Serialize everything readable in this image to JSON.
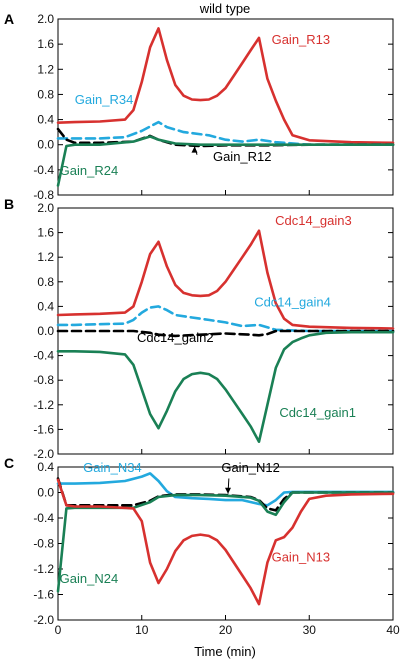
{
  "title": "wild type",
  "colors": {
    "red": "#d7312f",
    "cyan": "#23a9de",
    "green": "#1a8055",
    "black": "#000000"
  },
  "chart_data": [
    {
      "panel": "A",
      "type": "line",
      "title": "wild type",
      "xlabel": "",
      "ylabel": "",
      "xlim": [
        0,
        40
      ],
      "ylim": [
        -0.8,
        2.0
      ],
      "yticks": [
        "-0.8",
        "-0.4",
        "0.0",
        "0.4",
        "0.8",
        "1.2",
        "1.6",
        "2.0"
      ],
      "grid": false,
      "legend": "inline labels",
      "series": [
        {
          "name": "Gain_R13",
          "color": "red",
          "dash": "solid",
          "x": [
            0,
            2,
            5,
            8,
            9,
            10,
            11,
            12,
            13,
            14,
            15,
            16,
            17,
            18,
            19,
            20,
            21,
            22,
            23,
            24,
            25,
            26,
            27,
            28,
            30,
            35,
            40
          ],
          "y": [
            0.35,
            0.36,
            0.37,
            0.4,
            0.55,
            1.0,
            1.55,
            1.85,
            1.35,
            0.95,
            0.78,
            0.72,
            0.71,
            0.72,
            0.78,
            0.9,
            1.1,
            1.3,
            1.5,
            1.7,
            1.05,
            0.7,
            0.4,
            0.15,
            0.07,
            0.04,
            0.03
          ]
        },
        {
          "name": "Gain_R34",
          "color": "cyan",
          "dash": "dashed",
          "x": [
            0,
            1,
            5,
            8,
            10,
            12,
            13,
            15,
            18,
            20,
            22,
            24,
            26,
            30,
            40
          ],
          "y": [
            0.1,
            0.1,
            0.1,
            0.12,
            0.22,
            0.36,
            0.28,
            0.2,
            0.15,
            0.08,
            0.05,
            0.08,
            0.04,
            0.0,
            0.0
          ]
        },
        {
          "name": "Gain_R12",
          "color": "black",
          "dash": "dashed",
          "x": [
            0,
            1,
            2,
            5,
            9,
            11,
            12,
            14,
            17,
            20,
            25,
            30,
            40
          ],
          "y": [
            0.25,
            0.08,
            0.03,
            0.03,
            0.05,
            0.14,
            0.08,
            0.0,
            -0.02,
            -0.01,
            -0.01,
            0.0,
            0.0
          ]
        },
        {
          "name": "Gain_R24",
          "color": "green",
          "dash": "solid",
          "x": [
            0,
            1,
            2,
            5,
            9,
            11,
            12,
            14,
            17,
            20,
            25,
            30,
            40
          ],
          "y": [
            -0.65,
            -0.02,
            0.0,
            0.0,
            0.05,
            0.13,
            0.08,
            0.02,
            0.0,
            0.0,
            0.0,
            0.0,
            0.0
          ]
        }
      ]
    },
    {
      "panel": "B",
      "type": "line",
      "xlabel": "",
      "ylabel": "",
      "xlim": [
        0,
        40
      ],
      "ylim": [
        -2.0,
        2.0
      ],
      "yticks": [
        "-2.0",
        "-1.6",
        "-1.2",
        "-0.8",
        "-0.4",
        "0.0",
        "0.4",
        "0.8",
        "1.2",
        "1.6",
        "2.0"
      ],
      "grid": false,
      "legend": "inline labels",
      "series": [
        {
          "name": "Cdc14_gain3",
          "color": "red",
          "dash": "solid",
          "x": [
            0,
            2,
            5,
            8,
            9,
            10,
            11,
            12,
            13,
            14,
            15,
            16,
            17,
            18,
            19,
            20,
            21,
            22,
            23,
            24,
            25,
            26,
            27,
            28,
            30,
            35,
            40
          ],
          "y": [
            0.26,
            0.27,
            0.28,
            0.3,
            0.4,
            0.8,
            1.25,
            1.45,
            1.05,
            0.75,
            0.62,
            0.58,
            0.57,
            0.58,
            0.65,
            0.8,
            1.0,
            1.2,
            1.4,
            1.63,
            0.95,
            0.45,
            0.2,
            0.1,
            0.07,
            0.05,
            0.04
          ]
        },
        {
          "name": "Cdc14_gain4",
          "color": "cyan",
          "dash": "dashed",
          "x": [
            0,
            2,
            5,
            8,
            9,
            10,
            11,
            12,
            13,
            14,
            16,
            18,
            20,
            22,
            24,
            26,
            30,
            40
          ],
          "y": [
            0.1,
            0.1,
            0.11,
            0.12,
            0.18,
            0.3,
            0.38,
            0.4,
            0.34,
            0.26,
            0.22,
            0.18,
            0.14,
            0.08,
            0.1,
            0.02,
            0.0,
            0.0
          ]
        },
        {
          "name": "Cdc14_gain2",
          "color": "black",
          "dash": "dashed",
          "x": [
            0,
            5,
            9,
            11,
            12,
            14,
            17,
            20,
            23,
            24,
            25,
            26,
            28,
            30,
            40
          ],
          "y": [
            0.0,
            0.0,
            0.0,
            -0.03,
            -0.06,
            -0.08,
            -0.06,
            -0.04,
            -0.06,
            -0.07,
            -0.05,
            0.0,
            0.0,
            0.0,
            0.0
          ]
        },
        {
          "name": "Cdc14_gain1",
          "color": "green",
          "dash": "solid",
          "x": [
            0,
            2,
            5,
            8,
            9,
            10,
            11,
            12,
            13,
            14,
            15,
            16,
            17,
            18,
            19,
            20,
            21,
            22,
            23,
            24,
            25,
            26,
            27,
            28,
            29,
            30,
            32,
            35,
            40
          ],
          "y": [
            -0.33,
            -0.33,
            -0.34,
            -0.38,
            -0.55,
            -0.95,
            -1.35,
            -1.58,
            -1.3,
            -0.98,
            -0.78,
            -0.7,
            -0.68,
            -0.7,
            -0.78,
            -0.95,
            -1.15,
            -1.35,
            -1.55,
            -1.8,
            -1.2,
            -0.6,
            -0.3,
            -0.18,
            -0.12,
            -0.07,
            -0.03,
            -0.02,
            -0.02
          ]
        }
      ]
    },
    {
      "panel": "C",
      "type": "line",
      "xlabel": "Time (min)",
      "ylabel": "",
      "xlim": [
        0,
        40
      ],
      "ylim": [
        -2.0,
        0.4
      ],
      "xticks": [
        "0",
        "10",
        "20",
        "30",
        "40"
      ],
      "yticks": [
        "-2.0",
        "-1.6",
        "-1.2",
        "-0.8",
        "-0.4",
        "0.0",
        "0.4"
      ],
      "grid": false,
      "legend": "inline labels",
      "series": [
        {
          "name": "Gain_N34",
          "color": "cyan",
          "dash": "solid",
          "x": [
            0,
            2,
            5,
            8,
            10,
            11,
            12,
            13,
            14,
            16,
            18,
            20,
            22,
            24,
            25,
            26,
            27,
            28,
            30,
            40
          ],
          "y": [
            0.14,
            0.14,
            0.15,
            0.18,
            0.25,
            0.3,
            0.18,
            0.02,
            -0.07,
            -0.09,
            -0.1,
            -0.12,
            -0.12,
            -0.18,
            -0.2,
            -0.12,
            0.0,
            0.01,
            0.01,
            0.01
          ]
        },
        {
          "name": "Gain_N12",
          "color": "black",
          "dash": "dashed",
          "x": [
            0,
            1,
            2,
            5,
            9,
            11,
            12,
            14,
            17,
            20,
            23,
            24,
            25,
            26,
            27,
            28,
            30,
            40
          ],
          "y": [
            0.22,
            -0.2,
            -0.2,
            -0.2,
            -0.2,
            -0.13,
            -0.06,
            -0.03,
            -0.03,
            -0.04,
            -0.07,
            -0.12,
            -0.25,
            -0.28,
            -0.1,
            0.0,
            0.0,
            0.0
          ]
        },
        {
          "name": "Gain_N24",
          "color": "green",
          "dash": "solid",
          "x": [
            0,
            1,
            2,
            5,
            9,
            11,
            12,
            14,
            17,
            20,
            23,
            24,
            25,
            26,
            27,
            28,
            30,
            40
          ],
          "y": [
            -1.55,
            -0.25,
            -0.24,
            -0.24,
            -0.24,
            -0.15,
            -0.07,
            -0.04,
            -0.04,
            -0.05,
            -0.08,
            -0.13,
            -0.3,
            -0.35,
            -0.15,
            0.0,
            0.0,
            0.0
          ]
        },
        {
          "name": "Gain_N13",
          "color": "red",
          "dash": "solid",
          "x": [
            0,
            1,
            2,
            5,
            9,
            10,
            11,
            12,
            13,
            14,
            15,
            16,
            17,
            18,
            19,
            20,
            21,
            22,
            23,
            24,
            25,
            26,
            27,
            28,
            29,
            30,
            32,
            35,
            40
          ],
          "y": [
            0.2,
            -0.2,
            -0.22,
            -0.22,
            -0.25,
            -0.45,
            -1.1,
            -1.42,
            -1.2,
            -0.92,
            -0.75,
            -0.68,
            -0.66,
            -0.68,
            -0.75,
            -0.9,
            -1.1,
            -1.3,
            -1.5,
            -1.75,
            -1.1,
            -0.75,
            -0.7,
            -0.55,
            -0.3,
            -0.1,
            -0.05,
            -0.03,
            -0.02
          ]
        }
      ]
    }
  ]
}
